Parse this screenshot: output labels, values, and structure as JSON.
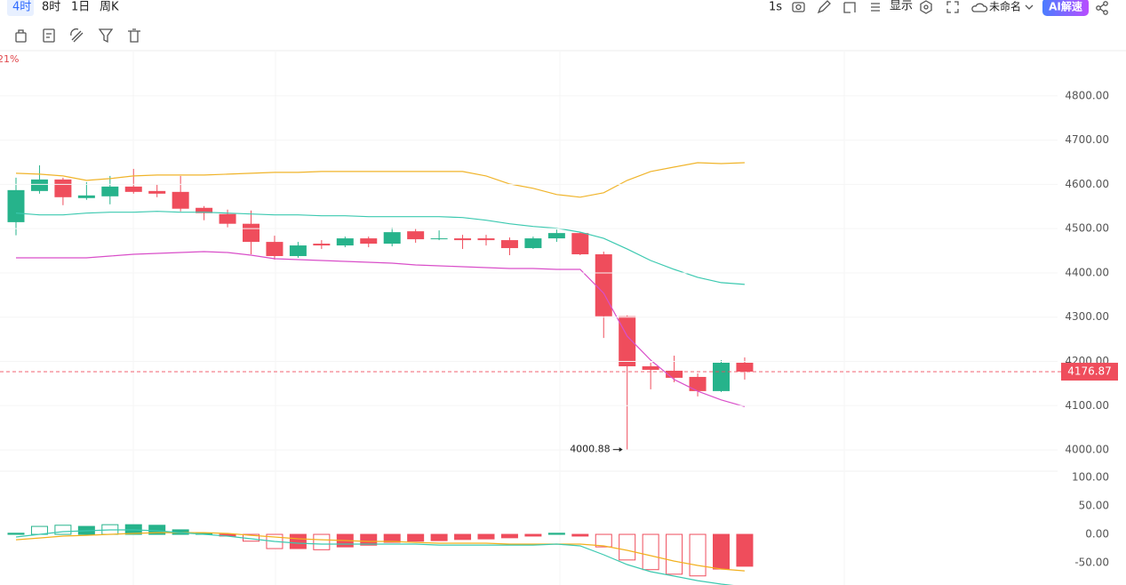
{
  "toolbar": {
    "periods": [
      "4时",
      "8时",
      "1日",
      "周K"
    ],
    "interval": "1s",
    "display": "显示",
    "layout_name": "未命名",
    "ai_button": "AI解速"
  },
  "change_label": "21%",
  "chart_data": [
    {
      "type": "candlestick",
      "open": [
        4514.6,
        4585,
        4611,
        4569,
        4573,
        4595,
        4585,
        4583,
        4547,
        4533,
        4511,
        4470,
        4438,
        4466,
        4462,
        4478,
        4466,
        4494,
        4476,
        4478,
        4478,
        4474,
        4456,
        4478,
        4490,
        4442,
        4302,
        4189,
        4179,
        4165,
        4133,
        4197
      ],
      "high": [
        4615,
        4643,
        4615,
        4605,
        4619,
        4635,
        4599,
        4619,
        4551,
        4543,
        4541,
        4484,
        4470,
        4474,
        4482,
        4482,
        4502,
        4500,
        4496,
        4486,
        4486,
        4480,
        4482,
        4498,
        4492,
        4448,
        4304,
        4197,
        4213,
        4173,
        4203,
        4209
      ],
      "low": [
        4485,
        4579,
        4553,
        4565,
        4555,
        4579,
        4571,
        4539,
        4519,
        4503,
        4442,
        4430,
        4434,
        4454,
        4458,
        4458,
        4460,
        4468,
        4474,
        4454,
        4462,
        4440,
        4454,
        4470,
        4440,
        4253,
        4000.88,
        4137,
        4153,
        4121,
        4131,
        4159
      ],
      "close": [
        4587,
        4611,
        4571,
        4575,
        4595,
        4583,
        4579,
        4545,
        4535,
        4511,
        4470,
        4438,
        4462,
        4462,
        4478,
        4466,
        4492,
        4476,
        4478,
        4474,
        4474,
        4456,
        4478,
        4490,
        4442,
        4302,
        4189,
        4181,
        4163,
        4133,
        4197,
        4176.87
      ],
      "up_color": "#26b38b",
      "down_color": "#ef4d5c",
      "series": [
        {
          "color": "#f0b42a",
          "values": [
            4625,
            4623,
            4619,
            4609,
            4613,
            4619,
            4621,
            4621,
            4621,
            4623,
            4625,
            4627,
            4627,
            4629,
            4629,
            4629,
            4629,
            4629,
            4629,
            4629,
            4619,
            4601,
            4591,
            4577,
            4571,
            4581,
            4609,
            4629,
            4639,
            4649,
            4647,
            4649
          ]
        },
        {
          "color": "#3cc9b0",
          "values": [
            4535,
            4531,
            4531,
            4535,
            4537,
            4537,
            4539,
            4537,
            4537,
            4535,
            4533,
            4531,
            4531,
            4529,
            4529,
            4527,
            4527,
            4527,
            4527,
            4525,
            4519,
            4511,
            4505,
            4501,
            4492,
            4478,
            4454,
            4428,
            4408,
            4390,
            4378,
            4374
          ]
        },
        {
          "color": "#d94fc9",
          "values": [
            4434,
            4434,
            4434,
            4434,
            4438,
            4442,
            4444,
            4446,
            4448,
            4446,
            4440,
            4432,
            4430,
            4428,
            4426,
            4424,
            4422,
            4418,
            4416,
            4414,
            4412,
            4410,
            4410,
            4408,
            4408,
            4354,
            4257,
            4203,
            4159,
            4133,
            4113,
            4098
          ]
        }
      ],
      "ylim": [
        3952,
        4900
      ],
      "yticks": [
        {
          "value": 4000,
          "label": "4000.00"
        },
        {
          "value": 4100,
          "label": "4100.00"
        },
        {
          "value": 4200,
          "label": "4200.00"
        },
        {
          "value": 4300,
          "label": "4300.00"
        },
        {
          "value": 4400,
          "label": "4400.00"
        },
        {
          "value": 4500,
          "label": "4500.00"
        },
        {
          "value": 4600,
          "label": "4600.00"
        },
        {
          "value": 4700,
          "label": "4700.00"
        },
        {
          "value": 4800,
          "label": "4800.00"
        }
      ],
      "grid": true
    },
    {
      "type": "macd",
      "values": [
        2,
        14,
        16,
        14,
        17,
        17,
        16,
        8,
        2,
        -3,
        -12,
        -25,
        -25,
        -27,
        -22,
        -19,
        -14,
        -12,
        -11,
        -9,
        -8,
        -6,
        -3,
        2,
        -3,
        -22,
        -45,
        -62,
        -70,
        -73,
        -61,
        -56
      ],
      "up_color": "#26b38b",
      "down_color": "#ef4d5c",
      "series": [
        {
          "color": "#f2b01e",
          "values": [
            -9.4,
            -6.3,
            -3.1,
            -1.6,
            0,
            1.6,
            3.1,
            3.1,
            3.1,
            1.6,
            -1.6,
            -4.7,
            -7.8,
            -9.4,
            -10.9,
            -12.5,
            -12.5,
            -14.1,
            -15.6,
            -15.6,
            -15.6,
            -17.2,
            -17.2,
            -17.2,
            -17.2,
            -20.3,
            -28.1,
            -37.5,
            -46.9,
            -54.7,
            -60.9,
            -64.1
          ]
        },
        {
          "color": "#3cc9b0",
          "values": [
            -4.7,
            0,
            4.7,
            6.3,
            7.8,
            7.8,
            6.3,
            3.1,
            0,
            -3.1,
            -7.8,
            -12.5,
            -15.6,
            -17.2,
            -17.2,
            -17.2,
            -17.2,
            -17.2,
            -18.8,
            -18.8,
            -18.8,
            -18.8,
            -18.8,
            -17.2,
            -20.3,
            -35.9,
            -53.1,
            -65.6,
            -73.4,
            -81.3,
            -87.5,
            -92.2
          ]
        }
      ],
      "ylim": [
        -89,
        111
      ],
      "yticks": [
        {
          "value": -50,
          "label": "-50.00"
        },
        {
          "value": 0,
          "label": "0.00"
        },
        {
          "value": 50,
          "label": "50.00"
        },
        {
          "value": 100,
          "label": "100.00"
        }
      ]
    }
  ]
}
